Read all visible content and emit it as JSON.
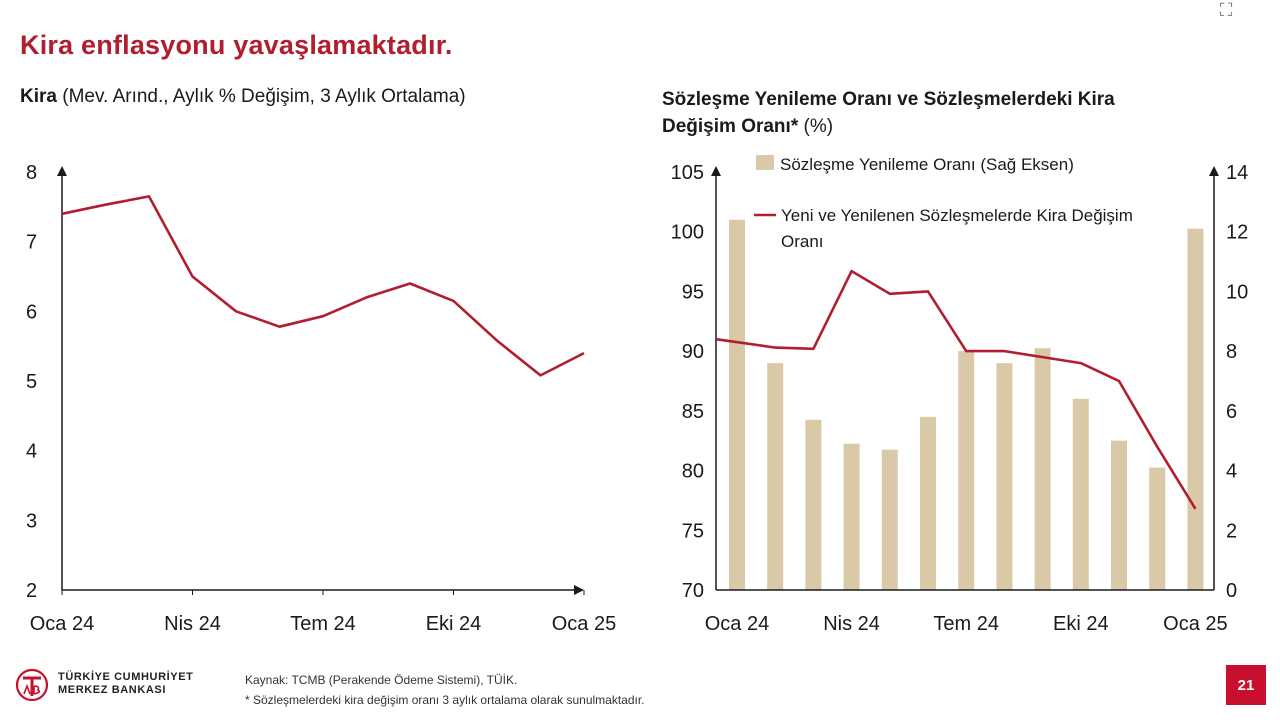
{
  "slide": {
    "title": "Kira enflasyonu yavaşlamaktadır.",
    "page_number": "21",
    "corner_icon": "expand-icon"
  },
  "left_chart_header": {
    "bold": "Kira",
    "rest": " (Mev. Arınd., Aylık % Değişim, 3 Aylık Ortalama)"
  },
  "right_chart_header": {
    "line1": "Sözleşme Yenileme Oranı ve Sözleşmelerdeki Kira",
    "line2_bold": "Değişim Oranı*",
    "line2_rest": " (%)"
  },
  "footer": {
    "logo_line1": "TÜRKİYE CUMHURİYET",
    "logo_line2": "MERKEZ BANKASI",
    "source": "Kaynak: TCMB (Perakende Ödeme Sistemi), TÜİK.",
    "note": "* Sözleşmelerdeki kira değişim oranı 3 aylık ortalama olarak sunulmaktadır."
  },
  "colors": {
    "line": "#b01e2f",
    "bar": "#d9c9a6",
    "axis": "#1a1a1a"
  },
  "chart_data": [
    {
      "type": "line",
      "title": "Kira (Mev. Arınd., Aylık % Değişim, 3 Aylık Ortalama)",
      "x": [
        0,
        1,
        2,
        3,
        4,
        5,
        6,
        7,
        8,
        9,
        10,
        11,
        12
      ],
      "x_tick_labels": [
        "Oca 24",
        "Nis 24",
        "Tem 24",
        "Eki 24",
        "Oca 25"
      ],
      "x_tick_positions": [
        0,
        3,
        6,
        9,
        12
      ],
      "series": [
        {
          "name": "Kira",
          "values": [
            7.4,
            7.53,
            7.65,
            6.5,
            6.0,
            5.78,
            5.93,
            6.2,
            6.4,
            6.15,
            5.58,
            5.08,
            5.4
          ]
        }
      ],
      "ylim": [
        2,
        8
      ],
      "y_ticks": [
        2,
        3,
        4,
        5,
        6,
        7,
        8
      ],
      "xlabel": "",
      "ylabel": "",
      "grid": false
    },
    {
      "type": "bar+line",
      "title": "Sözleşme Yenileme Oranı ve Sözleşmelerdeki Kira Değişim Oranı* (%)",
      "categories": [
        "Oca 24",
        "Şub 24",
        "Mar 24",
        "Nis 24",
        "May 24",
        "Haz 24",
        "Tem 24",
        "Ağu 24",
        "Eyl 24",
        "Eki 24",
        "Kas 24",
        "Ara 24",
        "Oca 25"
      ],
      "x_tick_labels": [
        "Oca 24",
        "Nis 24",
        "Tem 24",
        "Eki 24",
        "Oca 25"
      ],
      "x_tick_indices": [
        0,
        3,
        6,
        9,
        12
      ],
      "bars": {
        "name": "Sözleşme Yenileme Oranı (Sağ Eksen)",
        "axis": "right",
        "values": [
          12.4,
          7.6,
          5.7,
          4.9,
          4.7,
          5.8,
          8.0,
          7.6,
          8.1,
          6.4,
          5.0,
          4.1,
          12.1
        ]
      },
      "line": {
        "name": "Yeni ve Yenilenen Sözleşmelerde Kira Değişim Oranı",
        "axis": "left",
        "values": [
          91.0,
          90.3,
          90.2,
          96.7,
          94.8,
          95.0,
          90.0,
          90.0,
          89.5,
          89.0,
          87.5,
          82.0,
          76.8
        ]
      },
      "legend": {
        "bar_label": "Sözleşme Yenileme Oranı (Sağ Eksen)",
        "line_label_1": "Yeni ve Yenilenen Sözleşmelerde Kira Değişim",
        "line_label_2": "Oranı"
      },
      "left_ylim": [
        70,
        105
      ],
      "left_ticks": [
        70,
        75,
        80,
        85,
        90,
        95,
        100,
        105
      ],
      "right_ylim": [
        0,
        14
      ],
      "right_ticks": [
        0,
        2,
        4,
        6,
        8,
        10,
        12,
        14
      ],
      "grid": false
    }
  ]
}
